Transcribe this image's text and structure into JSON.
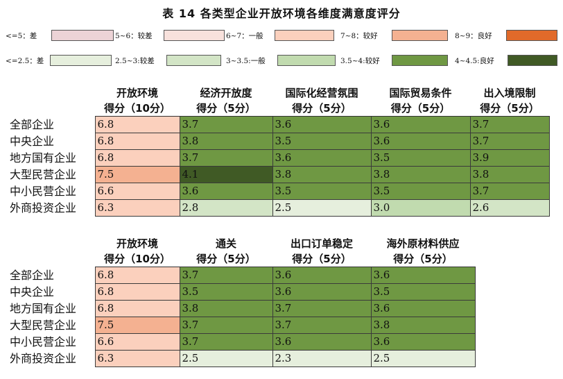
{
  "title": "表 14  各类型企业开放环境各维度满意度评分",
  "colors": {
    "open_lt5": "#ecd3d6",
    "open_5_6": "#f8e1dc",
    "open_6_7": "#fbd0bd",
    "open_7_8": "#f4b191",
    "open_8_9": "#e16a2a",
    "dim_lt25": "#e6efdd",
    "dim_25_3": "#d3e5c6",
    "dim_3_35": "#c1dbaf",
    "dim_35_4": "#6f9843",
    "dim_4_45": "#405a25"
  },
  "legend_open": [
    {
      "label": "<=5：差",
      "color": "#ecd3d6"
    },
    {
      "label": "5~6：较差",
      "color": "#f8e1dc"
    },
    {
      "label": "6~7：一般",
      "color": "#fbd0bd"
    },
    {
      "label": "7~8：较好",
      "color": "#f4b191"
    },
    {
      "label": "8~9：良好",
      "color": "#e16a2a"
    }
  ],
  "legend_dim": [
    {
      "label": "<=2.5：差",
      "color": "#e6efdd"
    },
    {
      "label": "2.5~3:较差",
      "color": "#d3e5c6"
    },
    {
      "label": "3~3.5:一般",
      "color": "#c1dbaf"
    },
    {
      "label": "3.5~4:较好",
      "color": "#6f9843"
    },
    {
      "label": "4~4.5:良好",
      "color": "#405a25"
    }
  ],
  "table1": {
    "headers": [
      {
        "l1": "开放环境",
        "l2": "得分（10分）"
      },
      {
        "l1": "经济开放度",
        "l2": "得分（5分）"
      },
      {
        "l1": "国际化经营氛围",
        "l2": "得分（5分）"
      },
      {
        "l1": "国际贸易条件",
        "l2": "得分（5分）"
      },
      {
        "l1": "出入境限制",
        "l2": "得分（5分）"
      }
    ],
    "rows": [
      {
        "label": "全部企业",
        "values": [
          "6.8",
          "3.7",
          "3.6",
          "3.6",
          "3.7"
        ]
      },
      {
        "label": "中央企业",
        "values": [
          "6.8",
          "3.8",
          "3.5",
          "3.6",
          "3.7"
        ]
      },
      {
        "label": "地方国有企业",
        "values": [
          "6.8",
          "3.7",
          "3.6",
          "3.5",
          "3.9"
        ]
      },
      {
        "label": "大型民营企业",
        "values": [
          "7.5",
          "4.1",
          "3.8",
          "3.8",
          "3.8"
        ]
      },
      {
        "label": "中小民营企业",
        "values": [
          "6.6",
          "3.6",
          "3.5",
          "3.5",
          "3.7"
        ]
      },
      {
        "label": "外商投资企业",
        "values": [
          "6.3",
          "2.8",
          "2.5",
          "3.0",
          "2.6"
        ]
      }
    ]
  },
  "table2": {
    "headers": [
      {
        "l1": "开放环境",
        "l2": "得分（10分）"
      },
      {
        "l1": "通关",
        "l2": "得分（5分）"
      },
      {
        "l1": "出口订单稳定",
        "l2": "得分（5分）"
      },
      {
        "l1": "海外原材料供应",
        "l2": "得分（5分）"
      }
    ],
    "rows": [
      {
        "label": "全部企业",
        "values": [
          "6.8",
          "3.7",
          "3.6",
          "3.6"
        ]
      },
      {
        "label": "中央企业",
        "values": [
          "6.8",
          "3.5",
          "3.6",
          "3.5"
        ]
      },
      {
        "label": "地方国有企业",
        "values": [
          "6.8",
          "3.8",
          "3.7",
          "3.6"
        ]
      },
      {
        "label": "大型民营企业",
        "values": [
          "7.5",
          "3.7",
          "3.7",
          "3.8"
        ]
      },
      {
        "label": "中小民营企业",
        "values": [
          "6.6",
          "3.7",
          "3.6",
          "3.6"
        ]
      },
      {
        "label": "外商投资企业",
        "values": [
          "6.3",
          "2.5",
          "2.3",
          "2.5"
        ]
      }
    ]
  }
}
